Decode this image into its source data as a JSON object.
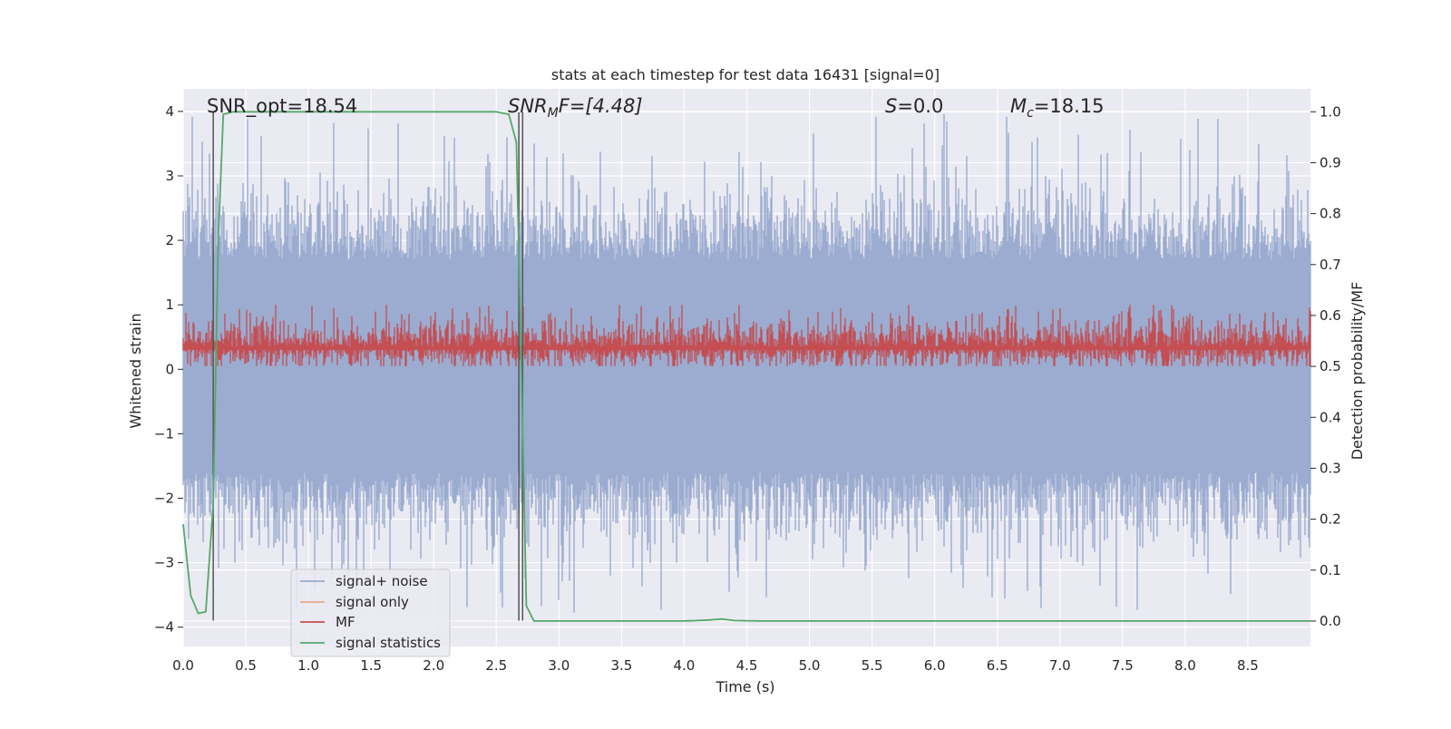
{
  "chart_data": {
    "type": "line",
    "title": "stats at each timestep for test data 16431 [signal=0]",
    "xlabel": "Time (s)",
    "ylabel": "Whitened strain",
    "y2label": "Detection probability/MF",
    "xlim": [
      0.0,
      9.0
    ],
    "ylim": [
      -4.3,
      4.35
    ],
    "y2lim": [
      -0.05,
      1.045
    ],
    "x_ticks": [
      "0.0",
      "0.5",
      "1.0",
      "1.5",
      "2.0",
      "2.5",
      "3.0",
      "3.5",
      "4.0",
      "4.5",
      "5.0",
      "5.5",
      "6.0",
      "6.5",
      "7.0",
      "7.5",
      "8.0",
      "8.5"
    ],
    "y_ticks": [
      "4",
      "3",
      "2",
      "1",
      "0",
      "−1",
      "−2",
      "−3",
      "−4"
    ],
    "y2_ticks": [
      "1.0",
      "0.9",
      "0.8",
      "0.7",
      "0.6",
      "0.5",
      "0.4",
      "0.3",
      "0.2",
      "0.1",
      "0.0"
    ],
    "grid": true,
    "legend_position": "lower-left",
    "annotations": [
      {
        "id": "snr-opt",
        "label": "SNR_opt=18.54"
      },
      {
        "id": "snr-mf",
        "symbol": "SNR",
        "sub": "M",
        "rest": "F=[4.48]"
      },
      {
        "id": "s-stat",
        "symbol": "S",
        "rest": "=0.0"
      },
      {
        "id": "mc",
        "symbol": "M",
        "sub": "c",
        "rest": "=18.15"
      }
    ],
    "vertical_lines": [
      {
        "x": 0.24
      },
      {
        "x": 2.68
      },
      {
        "x": 2.71
      }
    ],
    "series": [
      {
        "name": "signal+ noise",
        "color": "#97a9ce",
        "axis": "left",
        "kind": "noise",
        "x_range": [
          0.0,
          9.0
        ],
        "typical_range": [
          -1.6,
          1.7
        ],
        "extremes": {
          "max": 4.0,
          "min": -3.8
        }
      },
      {
        "name": "signal only",
        "color": "#e8a98a",
        "axis": "left",
        "kind": "line",
        "x": [],
        "y": []
      },
      {
        "name": "MF",
        "color": "#c44e52",
        "axis": "left",
        "kind": "noise",
        "x_range": [
          0.0,
          9.0
        ],
        "typical_range": [
          0.05,
          0.75
        ],
        "extremes": {
          "max": 1.0,
          "min": 0.0
        }
      },
      {
        "name": "signal statistics",
        "color": "#55a868",
        "axis": "right",
        "kind": "line",
        "x": [
          0.0,
          0.06,
          0.12,
          0.18,
          0.24,
          0.28,
          0.32,
          0.4,
          0.5,
          1.0,
          1.5,
          1.8,
          2.0,
          2.5,
          2.6,
          2.66,
          2.7,
          2.74,
          2.8,
          3.0,
          4.0,
          4.2,
          4.3,
          4.4,
          4.6,
          5.0,
          6.0,
          7.0,
          8.0,
          9.0
        ],
        "y": [
          0.19,
          0.05,
          0.015,
          0.018,
          0.23,
          0.75,
          0.995,
          1.0,
          1.0,
          1.0,
          1.0,
          1.0,
          1.0,
          1.0,
          0.995,
          0.94,
          0.5,
          0.03,
          0.0,
          0.0,
          0.0,
          0.002,
          0.004,
          0.001,
          0.0,
          0.0,
          0.0,
          0.0,
          0.0,
          0.0
        ]
      }
    ]
  }
}
